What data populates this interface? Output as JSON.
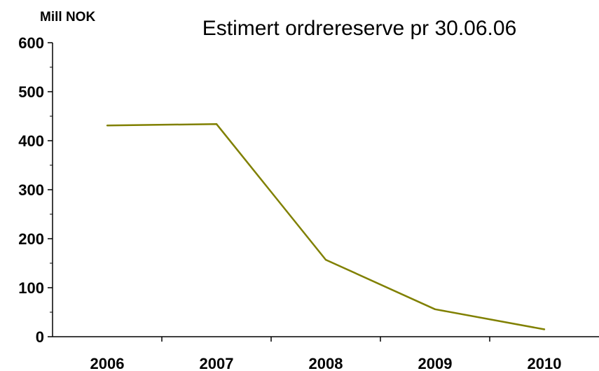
{
  "chart_data": {
    "type": "line",
    "title": "Estimert ordrereserve pr 30.06.06",
    "ylabel": "Mill NOK",
    "xlabel": "",
    "categories": [
      "2006",
      "2007",
      "2008",
      "2009",
      "2010"
    ],
    "series": [
      {
        "values": [
          431,
          434,
          157,
          56,
          15
        ],
        "color": "#808000"
      }
    ],
    "ylim": [
      0,
      600
    ],
    "yticks": [
      "0",
      "100",
      "200",
      "300",
      "400",
      "500",
      "600"
    ],
    "grid": false,
    "legend": "none"
  }
}
